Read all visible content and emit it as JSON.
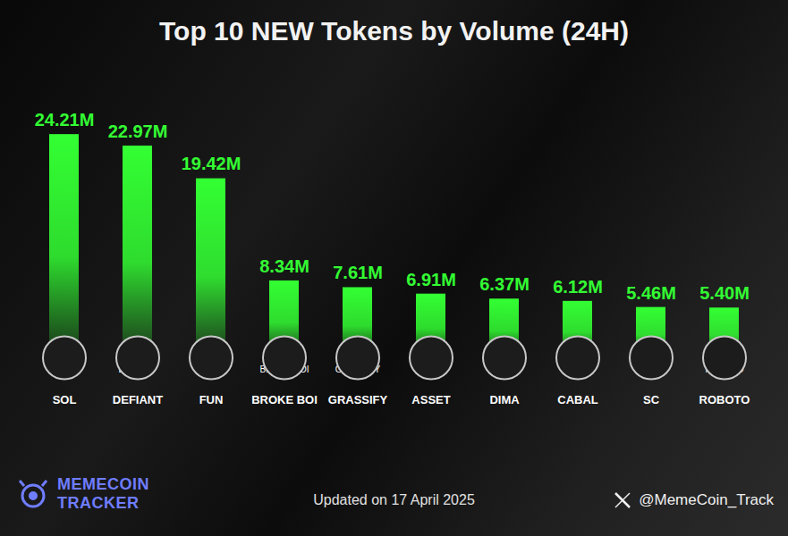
{
  "chart_data": {
    "type": "bar",
    "title": "Top 10 NEW Tokens by Volume (24H)",
    "categories": [
      "SOL",
      "DEFIANT",
      "FUN",
      "BROKE BOI",
      "GRASSIFY",
      "ASSET",
      "DIMA",
      "CABAL",
      "SC",
      "ROBOTO"
    ],
    "values": [
      24.21,
      22.97,
      19.42,
      8.34,
      7.61,
      6.91,
      6.37,
      6.12,
      5.46,
      5.4
    ],
    "value_labels": [
      "24.21M",
      "22.97M",
      "19.42M",
      "8.34M",
      "7.61M",
      "6.91M",
      "6.37M",
      "6.12M",
      "5.46M",
      "5.40M"
    ],
    "color": "#33ff33",
    "ylim": [
      0,
      25
    ],
    "data_labels": true,
    "tick_labels": "x",
    "grid": false,
    "annotations": [
      "MEMECOIN TRACKER",
      "Updated on 17 April 2025",
      "@MemeCoin_Track"
    ]
  }
}
